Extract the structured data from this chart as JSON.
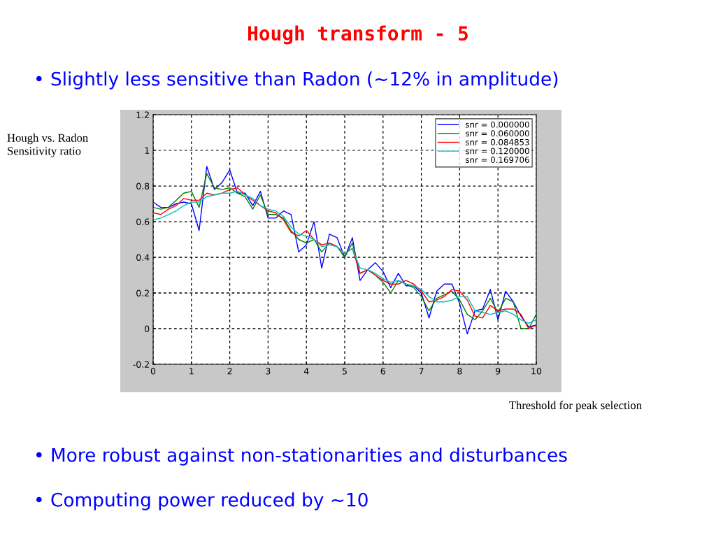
{
  "chart_data": {
    "type": "line",
    "title": "Hough transform - 5",
    "annotations": [
      "• Slightly less sensitive than Radon (~12% in amplitude)",
      "• More robust against non-stationarities and disturbances",
      "• Computing power reduced by ~10"
    ],
    "ylabel": "Hough vs. Radon\nSensitivity ratio",
    "xlabel": "Threshold for peak selection",
    "x": [
      0,
      0.2,
      0.4,
      0.6,
      0.8,
      1.0,
      1.2,
      1.4,
      1.6,
      1.8,
      2.0,
      2.2,
      2.4,
      2.6,
      2.8,
      3.0,
      3.2,
      3.4,
      3.6,
      3.8,
      4.0,
      4.2,
      4.4,
      4.6,
      4.8,
      5.0,
      5.2,
      5.4,
      5.6,
      5.8,
      6.0,
      6.2,
      6.4,
      6.6,
      6.8,
      7.0,
      7.2,
      7.4,
      7.6,
      7.8,
      8.0,
      8.2,
      8.4,
      8.6,
      8.8,
      9.0,
      9.2,
      9.4,
      9.6,
      9.8,
      10
    ],
    "series": [
      {
        "name": "snr = 0.000000",
        "color": "#0000ff",
        "values": [
          0.71,
          0.68,
          0.68,
          0.7,
          0.71,
          0.7,
          0.55,
          0.91,
          0.78,
          0.82,
          0.89,
          0.76,
          0.76,
          0.69,
          0.77,
          0.62,
          0.62,
          0.66,
          0.64,
          0.43,
          0.47,
          0.6,
          0.34,
          0.53,
          0.51,
          0.4,
          0.51,
          0.27,
          0.33,
          0.37,
          0.32,
          0.23,
          0.31,
          0.24,
          0.24,
          0.2,
          0.06,
          0.21,
          0.25,
          0.25,
          0.14,
          -0.03,
          0.1,
          0.11,
          0.22,
          0.05,
          0.21,
          0.15,
          0.07,
          0.01,
          0.02
        ]
      },
      {
        "name": "snr = 0.060000",
        "color": "#008000",
        "values": [
          0.68,
          0.67,
          0.68,
          0.72,
          0.76,
          0.77,
          0.68,
          0.87,
          0.79,
          0.78,
          0.79,
          0.76,
          0.74,
          0.67,
          0.75,
          0.64,
          0.64,
          0.62,
          0.55,
          0.5,
          0.48,
          0.5,
          0.43,
          0.48,
          0.46,
          0.4,
          0.48,
          0.31,
          0.33,
          0.3,
          0.26,
          0.2,
          0.27,
          0.25,
          0.23,
          0.18,
          0.1,
          0.17,
          0.19,
          0.21,
          0.16,
          0.08,
          0.05,
          0.1,
          0.17,
          0.09,
          0.17,
          0.15,
          0.0,
          0.0,
          0.08
        ]
      },
      {
        "name": "snr = 0.084853",
        "color": "#ff0000",
        "values": [
          0.65,
          0.64,
          0.67,
          0.69,
          0.73,
          0.72,
          0.72,
          0.76,
          0.75,
          0.76,
          0.78,
          0.79,
          0.75,
          0.72,
          0.69,
          0.66,
          0.65,
          0.61,
          0.54,
          0.52,
          0.55,
          0.5,
          0.47,
          0.48,
          0.46,
          0.42,
          0.45,
          0.31,
          0.33,
          0.3,
          0.27,
          0.25,
          0.25,
          0.27,
          0.25,
          0.21,
          0.15,
          0.16,
          0.18,
          0.22,
          0.21,
          0.16,
          0.07,
          0.06,
          0.13,
          0.1,
          0.11,
          0.11,
          0.08,
          0.0,
          0.02
        ]
      },
      {
        "name": "snr = 0.120000",
        "color": "#00bfbf",
        "values": [
          0.61,
          0.62,
          0.64,
          0.66,
          0.69,
          0.71,
          0.71,
          0.74,
          0.75,
          0.76,
          0.76,
          0.77,
          0.75,
          0.73,
          0.69,
          0.67,
          0.66,
          0.63,
          0.57,
          0.53,
          0.52,
          0.5,
          0.46,
          0.47,
          0.46,
          0.42,
          0.45,
          0.34,
          0.33,
          0.31,
          0.28,
          0.26,
          0.27,
          0.25,
          0.24,
          0.22,
          0.18,
          0.15,
          0.15,
          0.16,
          0.18,
          0.18,
          0.1,
          0.09,
          0.08,
          0.09,
          0.1,
          0.08,
          0.05,
          0.03,
          0.05
        ]
      },
      {
        "name": "snr = 0.169706",
        "values": [
          null,
          null,
          null,
          null,
          null,
          null,
          null,
          null,
          null,
          null,
          null,
          null,
          null,
          null,
          null,
          null,
          null,
          null,
          null,
          null,
          null,
          null,
          null,
          null,
          null,
          null,
          null,
          null,
          null,
          null,
          null,
          null,
          null,
          null,
          null,
          null,
          null,
          null,
          null,
          null,
          null,
          null,
          null,
          null,
          null,
          null,
          null,
          null,
          null,
          null,
          null
        ]
      }
    ],
    "xlim": [
      0,
      10
    ],
    "xticks": [
      0,
      1,
      2,
      3,
      4,
      5,
      6,
      7,
      8,
      9,
      10
    ],
    "ylim": [
      -0.2,
      1.2
    ],
    "yticks": [
      -0.2,
      0,
      0.2,
      0.4,
      0.6,
      0.8,
      1,
      1.2
    ],
    "grid": true,
    "legend": "top right"
  }
}
